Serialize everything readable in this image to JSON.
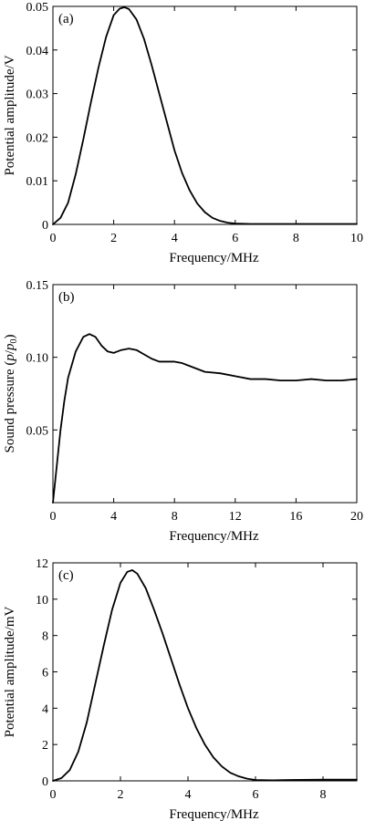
{
  "chart_data": [
    {
      "type": "line",
      "panel_label": "(a)",
      "xlabel": "Frequency/MHz",
      "ylabel": "Potential amplitude/V",
      "xlim": [
        0,
        10
      ],
      "ylim": [
        0,
        0.05
      ],
      "xticks": [
        0,
        2,
        4,
        6,
        8,
        10
      ],
      "xtick_labels": [
        "0",
        "2",
        "4",
        "6",
        "8",
        "10"
      ],
      "yticks": [
        0,
        0.01,
        0.02,
        0.03,
        0.04,
        0.05
      ],
      "ytick_labels": [
        "0",
        "0.01",
        "0.02",
        "0.03",
        "0.04",
        "0.05"
      ],
      "grid": false,
      "series": [
        {
          "x": [
            0,
            0.25,
            0.5,
            0.75,
            1.0,
            1.25,
            1.5,
            1.75,
            2.0,
            2.2,
            2.35,
            2.5,
            2.75,
            3.0,
            3.25,
            3.5,
            3.75,
            4.0,
            4.25,
            4.5,
            4.75,
            5.0,
            5.25,
            5.5,
            5.75,
            6.0,
            6.5,
            7.0,
            7.5,
            8.0,
            9.0,
            10.0
          ],
          "y": [
            0.0,
            0.0015,
            0.005,
            0.0115,
            0.0195,
            0.028,
            0.036,
            0.043,
            0.048,
            0.0495,
            0.0498,
            0.0494,
            0.047,
            0.0425,
            0.0365,
            0.03,
            0.0235,
            0.017,
            0.0118,
            0.0078,
            0.0048,
            0.0028,
            0.0015,
            0.0008,
            0.0004,
            0.0002,
            0.0001,
            0.0001,
            0.0001,
            0.0001,
            0.0001,
            0.0001
          ]
        }
      ]
    },
    {
      "type": "line",
      "panel_label": "(b)",
      "xlabel": "Frequency/MHz",
      "ylabel": "Sound pressure (p/p0)",
      "ylabel_parts": {
        "prefix": "Sound pressure (",
        "p": "p",
        "slash": "/",
        "p0": "p",
        "sub": "0",
        "suffix": ")"
      },
      "xlim": [
        0,
        20
      ],
      "ylim": [
        0,
        0.15
      ],
      "xticks": [
        0,
        4,
        8,
        12,
        16,
        20
      ],
      "xtick_labels": [
        "0",
        "4",
        "8",
        "12",
        "16",
        "20"
      ],
      "yticks": [
        0.05,
        0.1,
        0.15
      ],
      "ytick_labels": [
        "0.05",
        "0.10",
        "0.15"
      ],
      "grid": false,
      "series": [
        {
          "x": [
            0,
            0.25,
            0.5,
            0.75,
            1.0,
            1.5,
            2.0,
            2.4,
            2.8,
            3.2,
            3.6,
            4.0,
            4.5,
            5.0,
            5.5,
            6.0,
            6.5,
            7.0,
            8.0,
            8.5,
            9.0,
            10.0,
            11.0,
            12.0,
            13.0,
            14.0,
            15.0,
            16.0,
            17.0,
            18.0,
            19.0,
            20.0
          ],
          "y": [
            0.0,
            0.025,
            0.05,
            0.07,
            0.086,
            0.104,
            0.114,
            0.116,
            0.114,
            0.108,
            0.104,
            0.103,
            0.105,
            0.106,
            0.105,
            0.102,
            0.099,
            0.097,
            0.097,
            0.096,
            0.094,
            0.09,
            0.089,
            0.087,
            0.085,
            0.085,
            0.084,
            0.084,
            0.085,
            0.084,
            0.084,
            0.085
          ]
        }
      ]
    },
    {
      "type": "line",
      "panel_label": "(c)",
      "xlabel": "Frequency/MHz",
      "ylabel": "Potential amplitude/mV",
      "xlim": [
        0,
        9
      ],
      "ylim": [
        0,
        12
      ],
      "xticks": [
        0,
        2,
        4,
        6,
        8
      ],
      "xtick_labels": [
        "0",
        "2",
        "4",
        "6",
        "8"
      ],
      "yticks": [
        0,
        2,
        4,
        6,
        8,
        10,
        12
      ],
      "ytick_labels": [
        "0",
        "2",
        "4",
        "6",
        "8",
        "10",
        "12"
      ],
      "grid": false,
      "series": [
        {
          "x": [
            0,
            0.25,
            0.5,
            0.75,
            1.0,
            1.25,
            1.5,
            1.75,
            2.0,
            2.2,
            2.35,
            2.5,
            2.75,
            3.0,
            3.25,
            3.5,
            3.75,
            4.0,
            4.25,
            4.5,
            4.75,
            5.0,
            5.25,
            5.5,
            5.75,
            6.0,
            6.5,
            7.0,
            8.0,
            9.0
          ],
          "y": [
            0.0,
            0.15,
            0.6,
            1.6,
            3.2,
            5.3,
            7.4,
            9.4,
            10.9,
            11.5,
            11.6,
            11.4,
            10.6,
            9.4,
            8.1,
            6.7,
            5.3,
            4.0,
            2.9,
            2.0,
            1.3,
            0.8,
            0.45,
            0.25,
            0.12,
            0.05,
            0.03,
            0.05,
            0.07,
            0.07
          ]
        }
      ]
    }
  ]
}
